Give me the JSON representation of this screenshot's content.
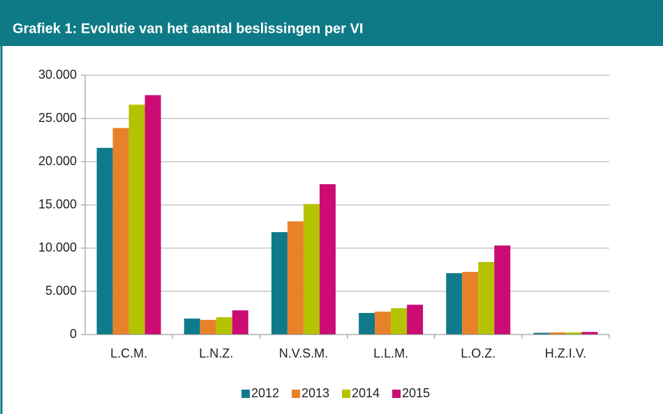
{
  "chart_data": {
    "type": "bar",
    "title": "Grafiek 1: Evolutie van het aantal beslissingen per VI",
    "categories": [
      "L.C.M.",
      "L.N.Z.",
      "N.V.S.M.",
      "L.L.M.",
      "L.O.Z.",
      "H.Z.I.V."
    ],
    "series": [
      {
        "name": "2012",
        "color": "#0f7b8a",
        "values": [
          21600,
          1850,
          11850,
          2500,
          7100,
          200
        ]
      },
      {
        "name": "2013",
        "color": "#e8822a",
        "values": [
          23900,
          1700,
          13100,
          2650,
          7250,
          250
        ]
      },
      {
        "name": "2014",
        "color": "#b5c200",
        "values": [
          26600,
          2000,
          15100,
          3050,
          8400,
          250
        ]
      },
      {
        "name": "2015",
        "color": "#cc0b74",
        "values": [
          27700,
          2800,
          17400,
          3450,
          10300,
          300
        ]
      }
    ],
    "ylim": [
      0,
      30000
    ],
    "yticks": [
      0,
      {
        "value": 5000,
        "label": "5.000"
      },
      {
        "value": 10000,
        "label": "10.000"
      },
      {
        "value": 15000,
        "label": "15.000"
      },
      {
        "value": 20000,
        "label": "20.000"
      },
      {
        "value": 25000,
        "label": "25.000"
      },
      {
        "value": 30000,
        "label": "30.000"
      }
    ],
    "grid": true,
    "legend": "bottom"
  }
}
